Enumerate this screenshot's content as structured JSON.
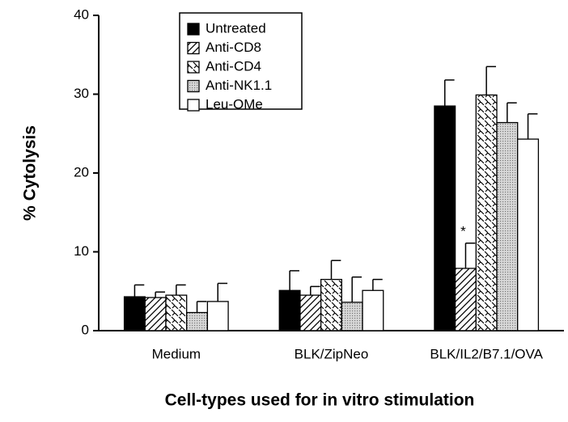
{
  "chart_data": {
    "type": "bar",
    "y_label": "% Cytolysis",
    "x_label": "Cell-types used for in vitro stimulation",
    "categories": [
      "Medium",
      "BLK/ZipNeo",
      "BLK/IL2/B7.1/OVA"
    ],
    "series": [
      {
        "name": "Untreated",
        "color": "#000000",
        "pattern": "solid",
        "values": [
          4.3,
          5.1,
          28.5
        ],
        "errors": [
          1.5,
          2.5,
          3.3
        ]
      },
      {
        "name": "Anti-CD8",
        "color": "#000000",
        "pattern": "diagonal",
        "values": [
          4.2,
          4.5,
          7.9
        ],
        "errors": [
          0.7,
          1.1,
          3.2
        ]
      },
      {
        "name": "Anti-CD4",
        "color": "#000000",
        "pattern": "zigzag",
        "values": [
          4.5,
          6.5,
          29.9
        ],
        "errors": [
          1.3,
          2.4,
          3.6
        ]
      },
      {
        "name": "Anti-NK1.1",
        "color": "#9a9a9a",
        "pattern": "dots",
        "values": [
          2.3,
          3.6,
          26.4
        ],
        "errors": [
          1.4,
          3.2,
          2.5
        ]
      },
      {
        "name": "Leu-OMe",
        "color": "#ffffff",
        "pattern": "solid",
        "values": [
          3.7,
          5.1,
          24.3
        ],
        "errors": [
          2.3,
          1.4,
          3.2
        ]
      }
    ],
    "annotation": {
      "text": "*",
      "series": 1,
      "category": 2
    },
    "ylim": [
      0,
      40
    ],
    "yticks": [
      0,
      10,
      20,
      30,
      40
    ],
    "grid": false,
    "legend": "top-left"
  }
}
